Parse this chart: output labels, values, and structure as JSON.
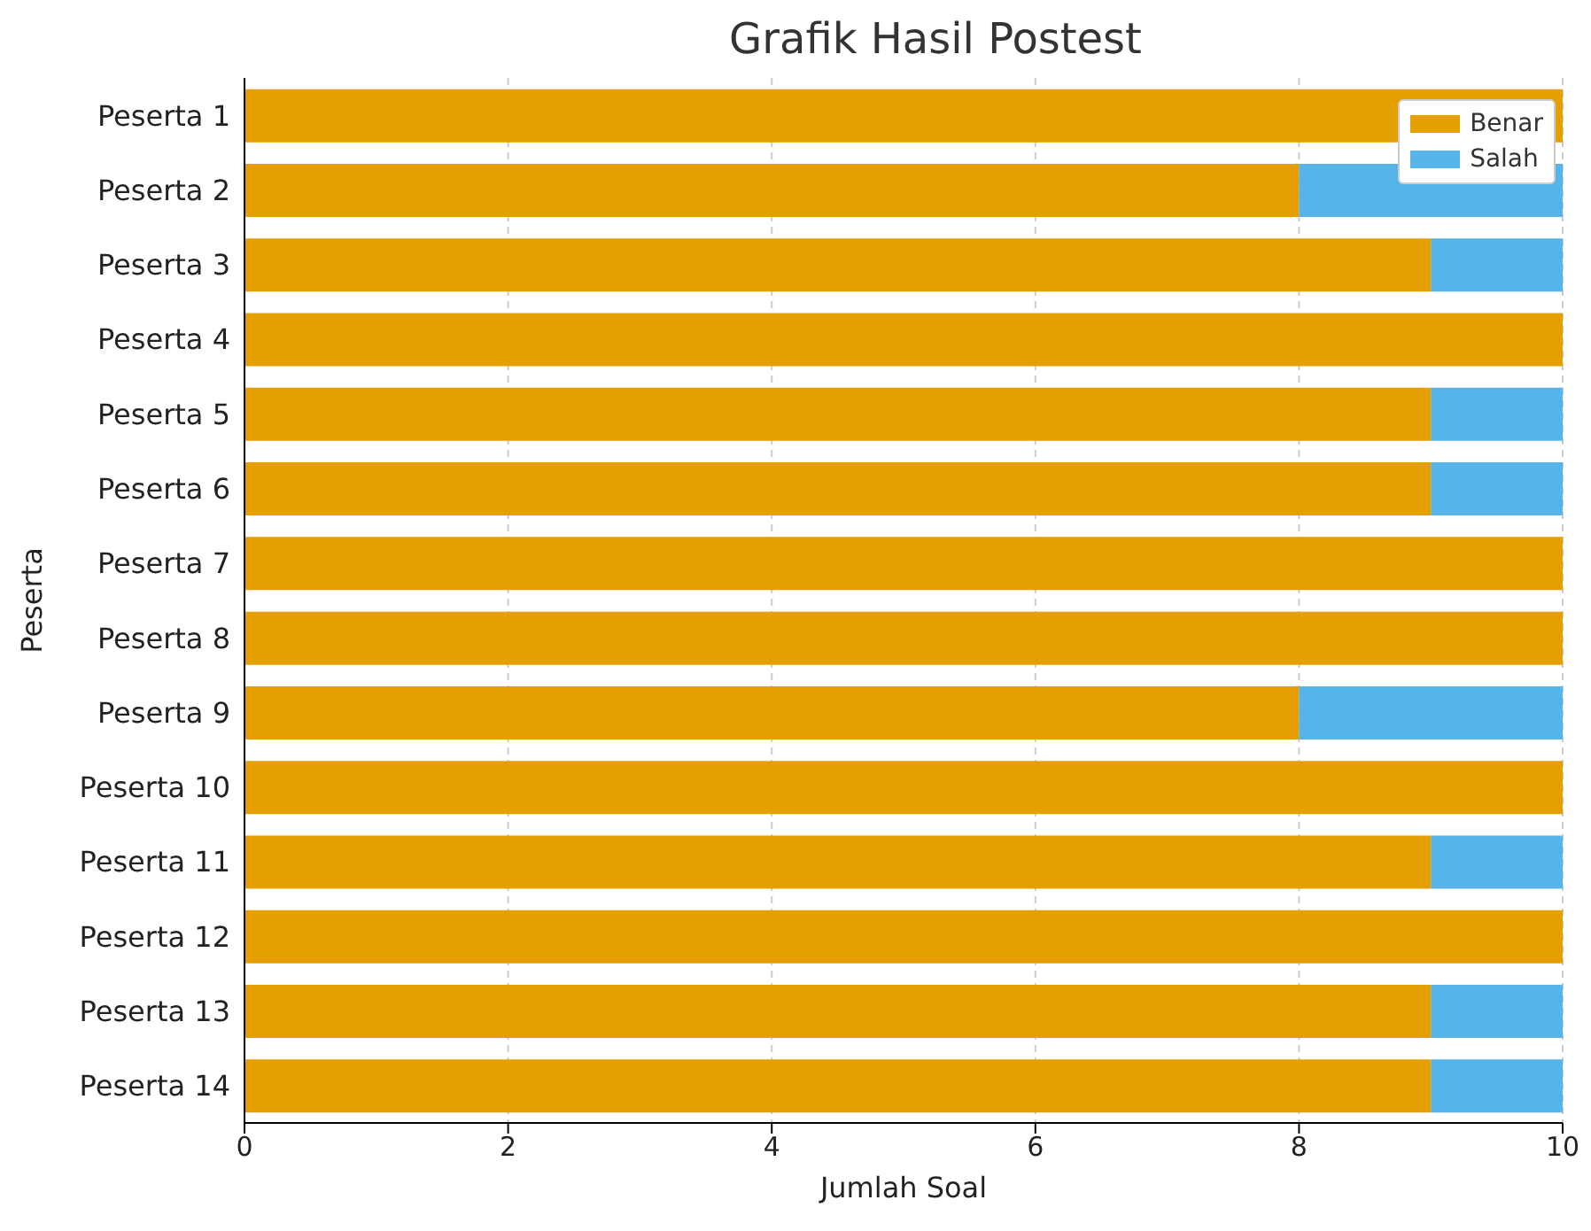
{
  "chart_data": {
    "type": "bar",
    "title": "Grafik Hasil Postest",
    "xlabel": "Jumlah Soal",
    "ylabel": "Peserta",
    "orientation": "horizontal",
    "stacked": true,
    "categories": [
      "Peserta 1",
      "Peserta 2",
      "Peserta 3",
      "Peserta 4",
      "Peserta 5",
      "Peserta 6",
      "Peserta 7",
      "Peserta 8",
      "Peserta 9",
      "Peserta 10",
      "Peserta 11",
      "Peserta 12",
      "Peserta 13",
      "Peserta 14"
    ],
    "series": [
      {
        "name": "Benar",
        "color": "#e69f00",
        "values": [
          10,
          8,
          9,
          10,
          9,
          9,
          10,
          10,
          8,
          10,
          9,
          10,
          9,
          9
        ]
      },
      {
        "name": "Salah",
        "color": "#56b4e9",
        "values": [
          0,
          2,
          1,
          0,
          1,
          1,
          0,
          0,
          2,
          0,
          1,
          0,
          1,
          1
        ]
      }
    ],
    "xlim": [
      0,
      10
    ],
    "xticks": [
      0,
      2,
      4,
      6,
      8,
      10
    ],
    "grid": "x",
    "legend": "top right"
  }
}
